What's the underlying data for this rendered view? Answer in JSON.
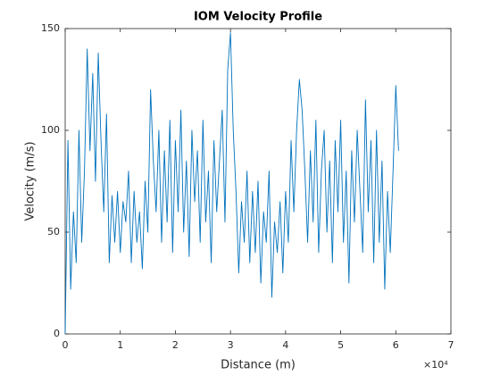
{
  "chart_data": {
    "type": "line",
    "title": "IOM Velocity Profile",
    "x_label": "Distance (m)",
    "y_label": "Velocity (m/s)",
    "x_exponent_label": "×10⁴",
    "xlim": [
      0,
      70000
    ],
    "xticks": [
      {
        "value": 0,
        "label": "0"
      },
      {
        "value": 10000,
        "label": "1"
      },
      {
        "value": 20000,
        "label": "2"
      },
      {
        "value": 30000,
        "label": "3"
      },
      {
        "value": 40000,
        "label": "4"
      },
      {
        "value": 50000,
        "label": "5"
      },
      {
        "value": 60000,
        "label": "6"
      },
      {
        "value": 70000,
        "label": "7"
      }
    ],
    "ylim": [
      0,
      150
    ],
    "yticks": [
      0,
      50,
      100,
      150
    ],
    "grid": false,
    "series": [
      {
        "color": "#0072bd",
        "x": [
          0,
          500,
          1000,
          1500,
          2000,
          2500,
          3000,
          3500,
          4000,
          4500,
          5000,
          5500,
          6000,
          6500,
          7000,
          7500,
          8000,
          8500,
          9000,
          9500,
          10000,
          10500,
          11000,
          11500,
          12000,
          12500,
          13000,
          13500,
          14000,
          14500,
          15000,
          15500,
          16000,
          16500,
          17000,
          17500,
          18000,
          18500,
          19000,
          19500,
          20000,
          20500,
          21000,
          21500,
          22000,
          22500,
          23000,
          23500,
          24000,
          24500,
          25000,
          25500,
          26000,
          26500,
          27000,
          27500,
          28000,
          28500,
          29000,
          29500,
          30000,
          30500,
          31000,
          31500,
          32000,
          32500,
          33000,
          33500,
          34000,
          34500,
          35000,
          35500,
          36000,
          36500,
          37000,
          37500,
          38000,
          38500,
          39000,
          39500,
          40000,
          40500,
          41000,
          41500,
          42000,
          42500,
          43000,
          43500,
          44000,
          44500,
          45000,
          45500,
          46000,
          46500,
          47000,
          47500,
          48000,
          48500,
          49000,
          49500,
          50000,
          50500,
          51000,
          51500,
          52000,
          52500,
          53000,
          53500,
          54000,
          54500,
          55000,
          55500,
          56000,
          56500,
          57000,
          57500,
          58000,
          58500,
          59000,
          59500,
          60000,
          60500
        ],
        "values": [
          0,
          95,
          22,
          60,
          35,
          100,
          45,
          80,
          140,
          90,
          128,
          75,
          138,
          95,
          60,
          108,
          35,
          68,
          45,
          70,
          40,
          65,
          55,
          80,
          35,
          70,
          45,
          60,
          32,
          75,
          50,
          120,
          85,
          60,
          100,
          45,
          90,
          55,
          105,
          40,
          95,
          60,
          110,
          50,
          85,
          38,
          100,
          65,
          90,
          45,
          105,
          55,
          80,
          35,
          95,
          60,
          85,
          110,
          55,
          130,
          148,
          100,
          70,
          30,
          65,
          45,
          80,
          35,
          70,
          40,
          75,
          25,
          60,
          45,
          80,
          18,
          55,
          40,
          65,
          30,
          70,
          45,
          95,
          60,
          100,
          125,
          110,
          80,
          45,
          90,
          55,
          105,
          40,
          80,
          100,
          50,
          85,
          35,
          95,
          60,
          105,
          45,
          80,
          25,
          90,
          55,
          100,
          70,
          40,
          115,
          60,
          95,
          35,
          100,
          45,
          85,
          22,
          70,
          40,
          80,
          122,
          90
        ]
      }
    ]
  }
}
